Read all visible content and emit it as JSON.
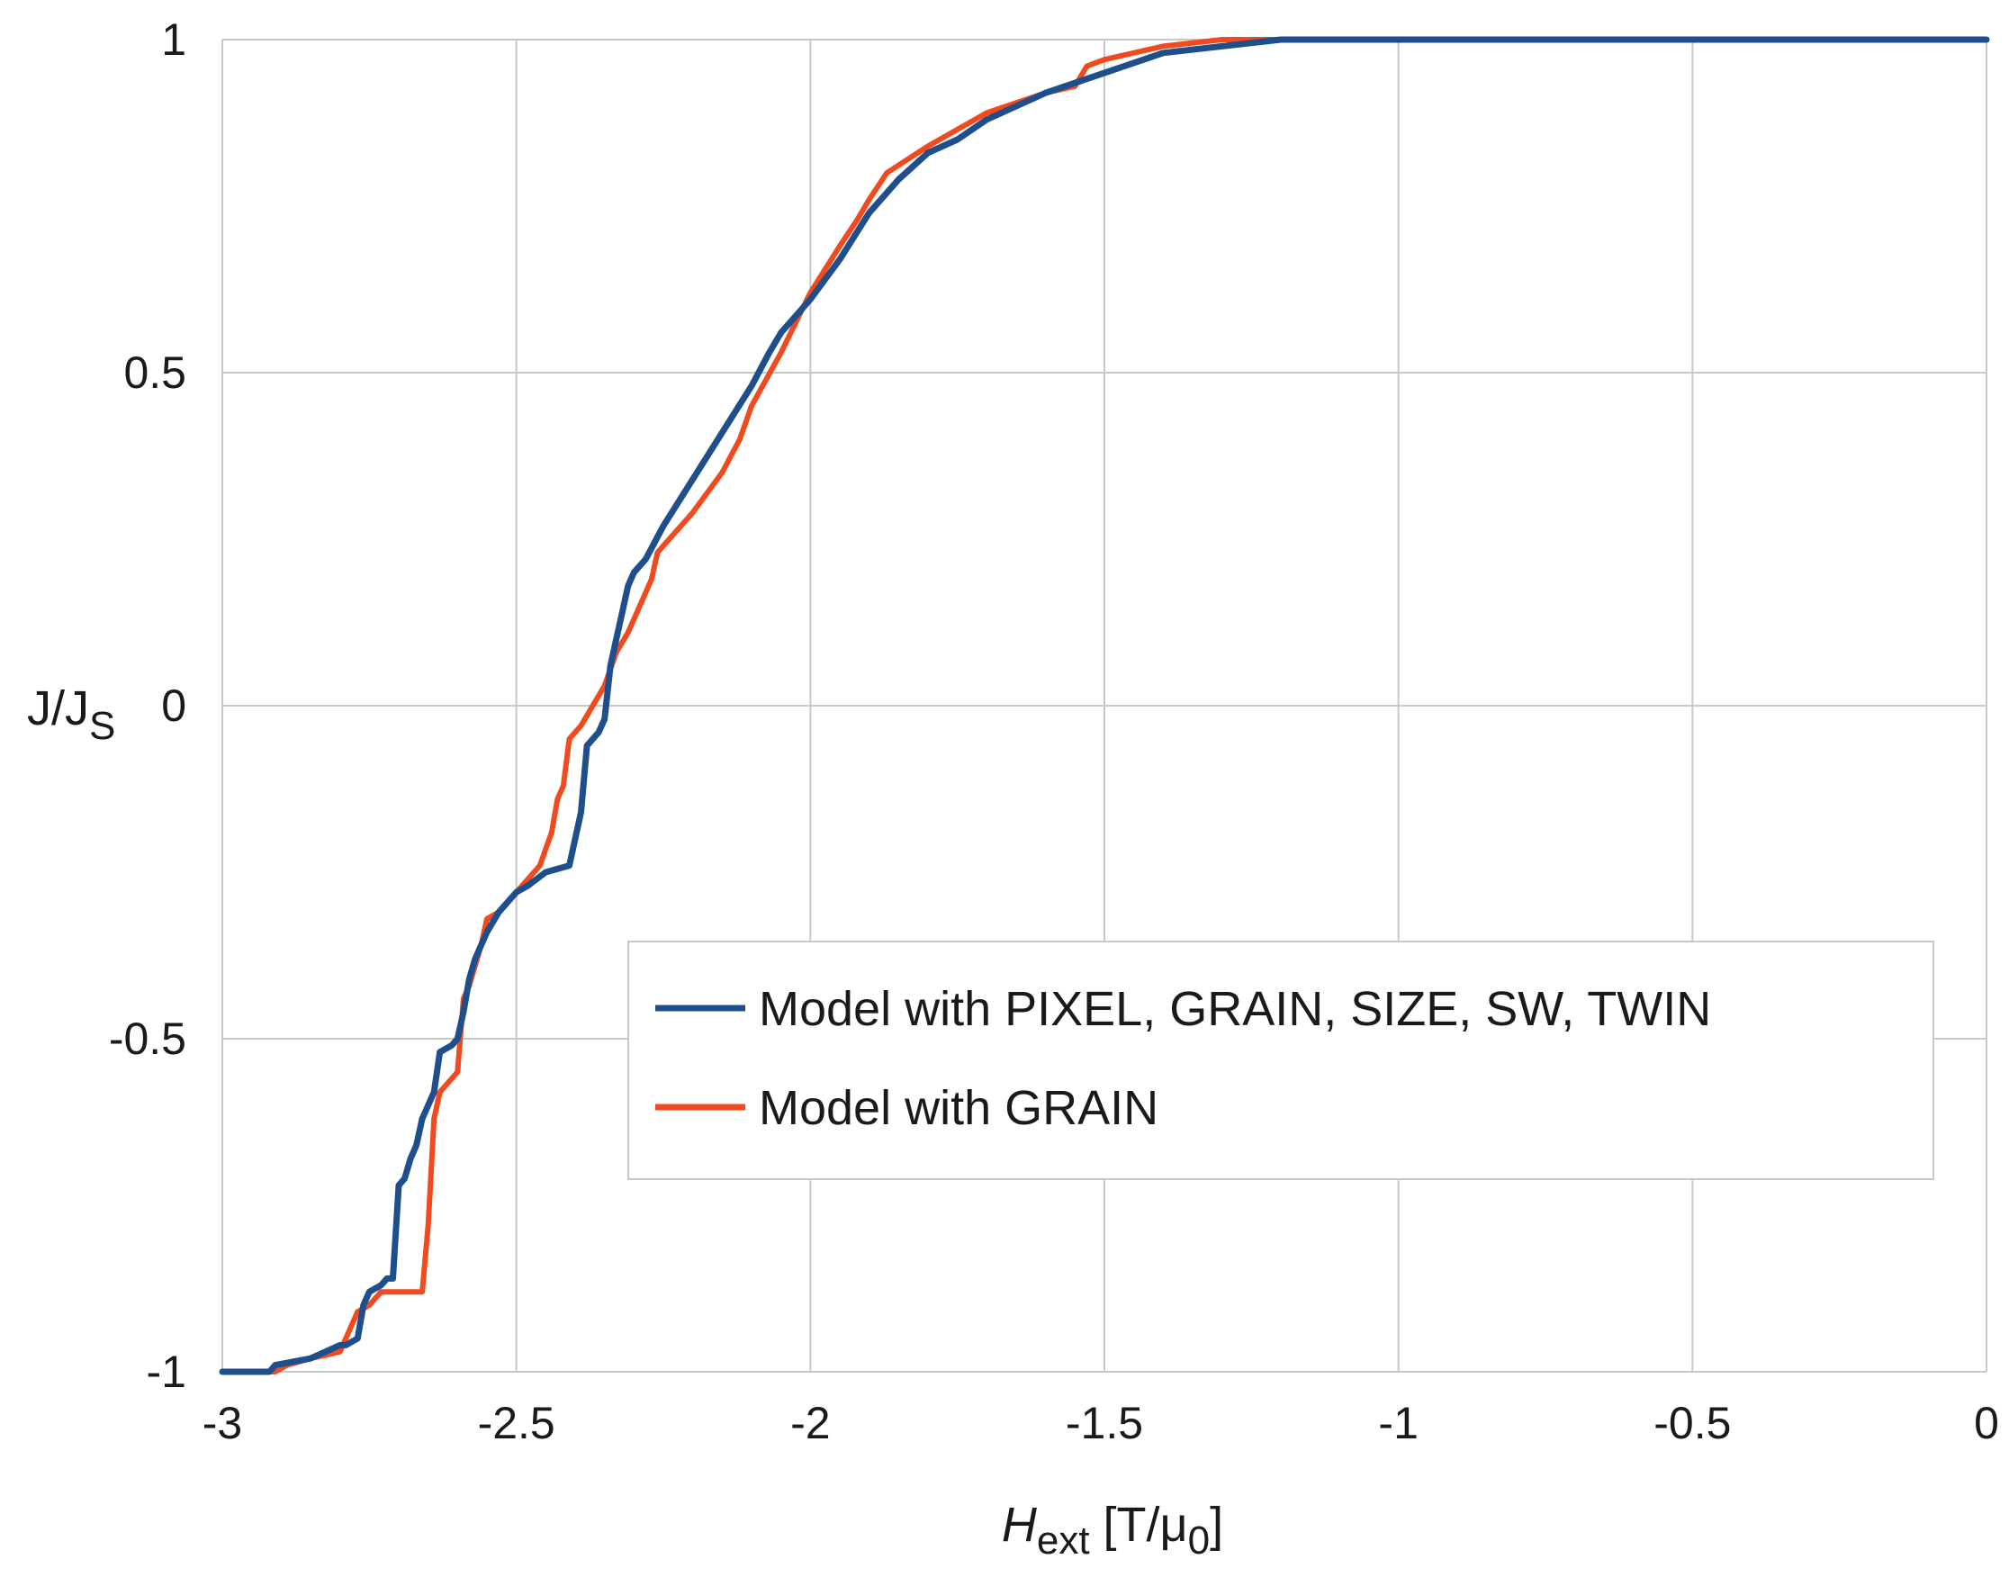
{
  "chart_data": {
    "type": "line",
    "title": "",
    "xlabel": {
      "main": "H",
      "sub": "ext",
      "unit_pre": " [T/μ",
      "unit_sub": "0",
      "unit_post": "]"
    },
    "ylabel": {
      "main": "J/J",
      "sub": "S"
    },
    "xlim": [
      -3,
      0
    ],
    "ylim": [
      -1,
      1
    ],
    "xticks": [
      -3,
      -2.5,
      -2,
      -1.5,
      -1,
      -0.5,
      0
    ],
    "yticks": [
      -1,
      -0.5,
      0,
      0.5,
      1
    ],
    "xtick_labels": [
      "-3",
      "-2.5",
      "-2",
      "-1.5",
      "-1",
      "-0.5",
      "0"
    ],
    "ytick_labels": [
      "-1",
      "-0.5",
      "0",
      "0.5",
      "1"
    ],
    "grid": true,
    "legend_position": "center-right",
    "series": [
      {
        "name": "Model with PIXEL, GRAIN, SIZE, SW, TWIN",
        "color": "#1f4e8c",
        "x": [
          -3.0,
          -2.92,
          -2.91,
          -2.85,
          -2.8,
          -2.79,
          -2.77,
          -2.76,
          -2.75,
          -2.73,
          -2.72,
          -2.71,
          -2.7,
          -2.69,
          -2.68,
          -2.67,
          -2.66,
          -2.65,
          -2.64,
          -2.63,
          -2.61,
          -2.6,
          -2.59,
          -2.58,
          -2.57,
          -2.55,
          -2.53,
          -2.5,
          -2.48,
          -2.45,
          -2.41,
          -2.4,
          -2.39,
          -2.38,
          -2.36,
          -2.35,
          -2.34,
          -2.33,
          -2.32,
          -2.31,
          -2.3,
          -2.28,
          -2.25,
          -2.2,
          -2.15,
          -2.1,
          -2.07,
          -2.05,
          -2.0,
          -1.95,
          -1.9,
          -1.85,
          -1.8,
          -1.75,
          -1.7,
          -1.6,
          -1.5,
          -1.4,
          -1.3,
          -1.2,
          -1.1,
          -1.0,
          0.0
        ],
        "y": [
          -1.0,
          -1.0,
          -0.99,
          -0.98,
          -0.96,
          -0.96,
          -0.95,
          -0.9,
          -0.88,
          -0.87,
          -0.86,
          -0.86,
          -0.72,
          -0.71,
          -0.68,
          -0.66,
          -0.62,
          -0.6,
          -0.58,
          -0.52,
          -0.51,
          -0.5,
          -0.46,
          -0.41,
          -0.38,
          -0.34,
          -0.31,
          -0.28,
          -0.27,
          -0.25,
          -0.24,
          -0.2,
          -0.16,
          -0.06,
          -0.04,
          -0.02,
          0.06,
          0.1,
          0.14,
          0.18,
          0.2,
          0.22,
          0.27,
          0.34,
          0.41,
          0.48,
          0.53,
          0.56,
          0.61,
          0.67,
          0.74,
          0.79,
          0.83,
          0.85,
          0.88,
          0.92,
          0.95,
          0.98,
          0.99,
          1.0,
          1.0,
          1.0,
          1.0
        ]
      },
      {
        "name": "Model with GRAIN",
        "color": "#f04a1e",
        "x": [
          -3.0,
          -2.91,
          -2.89,
          -2.85,
          -2.8,
          -2.78,
          -2.77,
          -2.75,
          -2.73,
          -2.7,
          -2.66,
          -2.65,
          -2.64,
          -2.63,
          -2.62,
          -2.6,
          -2.59,
          -2.58,
          -2.56,
          -2.55,
          -2.53,
          -2.5,
          -2.46,
          -2.44,
          -2.43,
          -2.42,
          -2.41,
          -2.39,
          -2.35,
          -2.33,
          -2.31,
          -2.29,
          -2.27,
          -2.26,
          -2.25,
          -2.2,
          -2.15,
          -2.12,
          -2.1,
          -2.05,
          -2.0,
          -1.95,
          -1.92,
          -1.9,
          -1.87,
          -1.8,
          -1.7,
          -1.6,
          -1.55,
          -1.53,
          -1.5,
          -1.4,
          -1.3,
          -1.2,
          -1.1,
          -1.0,
          0.0
        ],
        "y": [
          -1.0,
          -1.0,
          -0.99,
          -0.98,
          -0.97,
          -0.93,
          -0.91,
          -0.9,
          -0.88,
          -0.88,
          -0.88,
          -0.78,
          -0.62,
          -0.58,
          -0.57,
          -0.55,
          -0.44,
          -0.42,
          -0.36,
          -0.32,
          -0.31,
          -0.28,
          -0.24,
          -0.19,
          -0.14,
          -0.12,
          -0.05,
          -0.03,
          0.03,
          0.08,
          0.11,
          0.15,
          0.19,
          0.23,
          0.24,
          0.29,
          0.35,
          0.4,
          0.45,
          0.53,
          0.62,
          0.69,
          0.73,
          0.76,
          0.8,
          0.84,
          0.89,
          0.92,
          0.93,
          0.96,
          0.97,
          0.99,
          1.0,
          1.0,
          1.0,
          1.0,
          1.0
        ]
      }
    ]
  }
}
